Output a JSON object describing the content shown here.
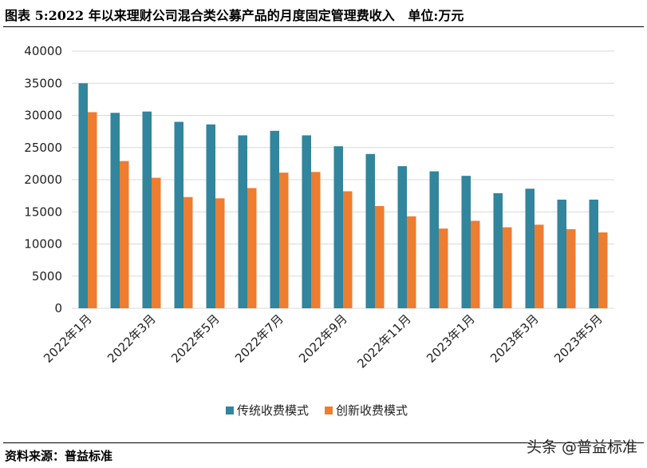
{
  "title": "图表 5:2022 年以来理财公司混合类公募产品的月度固定管理费收入   单位:万元",
  "source": "资料来源：普益标准",
  "watermark": "头条 @普益标准",
  "chart_data": {
    "type": "bar",
    "title": "图表 5:2022 年以来理财公司混合类公募产品的月度固定管理费收入   单位:万元",
    "categories": [
      "2022年1月",
      "2022年2月",
      "2022年3月",
      "2022年4月",
      "2022年5月",
      "2022年6月",
      "2022年7月",
      "2022年8月",
      "2022年9月",
      "2022年10月",
      "2022年11月",
      "2022年12月",
      "2023年1月",
      "2023年2月",
      "2023年3月",
      "2023年4月",
      "2023年5月"
    ],
    "shown_tick_labels": [
      "2022年1月",
      "2022年3月",
      "2022年5月",
      "2022年7月",
      "2022年9月",
      "2022年11月",
      "2023年1月",
      "2023年3月",
      "2023年5月"
    ],
    "series": [
      {
        "name": "传统收费模式",
        "color": "#31859C",
        "values": [
          35000,
          30400,
          30600,
          29000,
          28600,
          26900,
          27600,
          26900,
          25200,
          24000,
          22100,
          21300,
          20600,
          17900,
          18600,
          16900,
          16900
        ]
      },
      {
        "name": "创新收费模式",
        "color": "#ED7D31",
        "values": [
          30500,
          22900,
          20300,
          17300,
          17100,
          18700,
          21100,
          21200,
          18200,
          15900,
          14300,
          12400,
          13600,
          12600,
          13000,
          12300,
          11800
        ]
      }
    ],
    "yticks": [
      0,
      5000,
      10000,
      15000,
      20000,
      25000,
      30000,
      35000,
      40000
    ],
    "ylim": [
      0,
      40000
    ],
    "grid": true,
    "legend": "bottom"
  }
}
